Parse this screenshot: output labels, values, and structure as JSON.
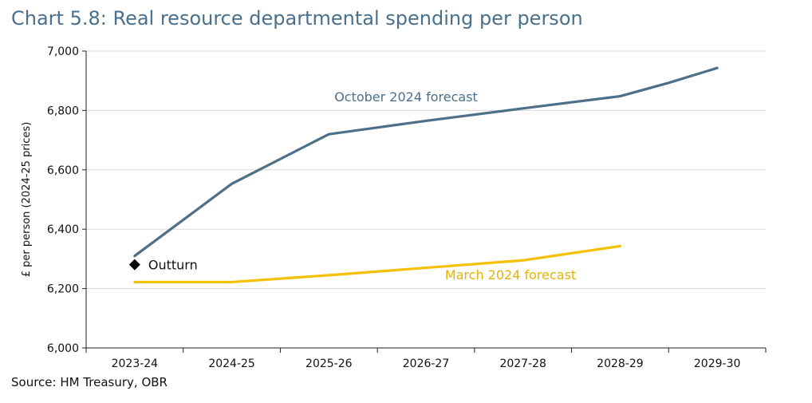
{
  "title": "Chart 5.8: Real resource departmental spending per person",
  "source": "Source: HM Treasury, OBR",
  "colors": {
    "title": "#4a6f8c",
    "october": "#4d6f88",
    "march": "#f5c000",
    "outturn": "#000000"
  },
  "chart_data": {
    "type": "line",
    "title": "Chart 5.8: Real resource departmental spending per person",
    "xlabel": "",
    "ylabel": "£ per person (2024-25 prices)",
    "ylim": [
      6000,
      7000
    ],
    "yticks": [
      6000,
      6200,
      6400,
      6600,
      6800,
      7000
    ],
    "ytick_labels": [
      "6,000",
      "6,200",
      "6,400",
      "6,600",
      "6,800",
      "7,000"
    ],
    "categories": [
      "2023-24",
      "2024-25",
      "2025-26",
      "2026-27",
      "2027-28",
      "2028-29",
      "2029-30"
    ],
    "grid": true,
    "series": [
      {
        "name": "October 2024 forecast",
        "values": [
          6310,
          6553,
          6720,
          6765,
          6807,
          6848,
          6893,
          6943
        ],
        "x": [
          0,
          1,
          2,
          3,
          4,
          5,
          5.5,
          6
        ]
      },
      {
        "name": "March 2024 forecast",
        "values": [
          6222,
          6222,
          6245,
          6295,
          6343
        ],
        "x": [
          0,
          1,
          2,
          4,
          5
        ]
      }
    ],
    "annotations": [
      {
        "text": "October 2024 forecast",
        "series": "October 2024 forecast"
      },
      {
        "text": "March 2024 forecast",
        "series": "March 2024 forecast"
      },
      {
        "text": "Outturn",
        "x": 0,
        "y": 6310
      }
    ]
  }
}
